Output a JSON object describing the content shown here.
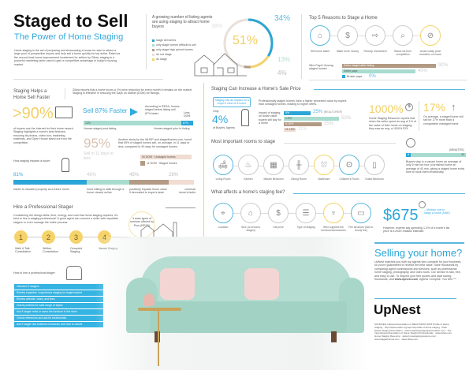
{
  "header": {
    "title": "Staged to Sell",
    "subtitle": "The Power of Home Staging",
    "intro": "Home staging is the act of preparing and showcasing a house for sale to attract a large pool of prospective buyers and help sell a home quickly for top dollar. Rated as the second best home improvement investment for sellers by Zillow, staging is a powerful marketing tactic used to gain a competitive advantage in today's housing market."
  },
  "agents": {
    "text": "A growing number of listing agents are using staging to attract home buyers",
    "legend": [
      "stage all homes",
      "only stage homes difficult to sell",
      "only stage high priced homes",
      "do not stage",
      "do stage"
    ],
    "center": "51%",
    "labels": {
      "p34": "34%",
      "p38": "38%",
      "p13": "13%",
      "p4": "4%"
    },
    "colors": [
      "#2aa6d8",
      "#a8dccf",
      "#b39a84",
      "#e8e0da",
      "#f5d36a"
    ]
  },
  "reasons": {
    "title": "Top 5 Reasons to Stage a Home",
    "items": [
      "Sell home faster",
      "Make more money",
      "Recoup investment",
      "Stand out from competition",
      "Avoid costly price reduction on home"
    ],
    "who_pays_label": "Who Pays? Among staged homes",
    "bars": [
      {
        "label": "Seller staged after listing",
        "value": "92%",
        "pct": 92
      },
      {
        "label": "Seller pays",
        "value": "40%",
        "pct": 40
      },
      {
        "label": "Broker pays",
        "value": "0%",
        "pct": 0
      }
    ]
  },
  "faster": {
    "title": "Staging Helps a Home Sell Faster",
    "zillow": "Zillow reports that a home incurs a 1% price reduction for every month it remains on the market. Staging is effective in reducing the Days on Market (DOM) for listings.",
    "big90": ">90%",
    "big90_text": "of buyers use the Internet for their home search. Staging highlights a home's best features, ensuring its photos, video tour, marketing materials, and Open House stand out from the competition.",
    "sell87": "Sell 87% Faster",
    "resa": "According to RESA, homes staged before listing sell 87% faster",
    "dom_label": "Less DOM",
    "bar_left": "13%",
    "bar_right": "87%",
    "bar_left_label": "Homes staged post-listing",
    "bar_right_label": "Homes staged prior to listing",
    "big95": "95%",
    "big95_sub": "Sell in 11 days or less",
    "study": "Another study by the IAHSP and stagedhomes.com, found that 95% of staged homes sell, on average, in 11 days or less, compared to 90 days for unstaged homes.",
    "dom": [
      {
        "value": "90 DOM",
        "label": "Unstaged homes"
      },
      {
        "value": "11 DOM",
        "label": "Staged homes"
      }
    ],
    "impact_label": "How staging impacts a buyer:",
    "impact": [
      {
        "value": "81%",
        "text": "easier to visualize property as a future home",
        "pct": 81
      },
      {
        "value": "46%",
        "text": "more willing to walk through a home viewed online",
        "pct": 46
      },
      {
        "value": "45%",
        "text": "positively impacts home value if decorated to buyer's taste",
        "pct": 45
      },
      {
        "value": "28%",
        "text": "overlook home's faults",
        "pct": 28
      }
    ]
  },
  "hire": {
    "title": "Hire a Professional Stager",
    "text": "Considering the design skills, time, energy, and cost that home staging requires, it's best to hire a staging professional. A good agent can connect a seller with reputable stagers or even manage the entire process.",
    "badge": "4 main types of services offered by Pros (RESA)",
    "steps": [
      {
        "n": "1",
        "label": "Walk & Talk Consultation"
      },
      {
        "n": "2",
        "label": "Written Consultation"
      },
      {
        "n": "3",
        "label": "Occupied Staging"
      },
      {
        "n": "4",
        "label": "Vacant Staging"
      }
    ],
    "how_label": "How to hire a professional stager:",
    "tips": [
      "Interview 3 stagers",
      "Review expertise / experience staging for target market",
      "Review website, video, and fees",
      "Check portfolio for wide range of styles",
      "Ask if stager rents or owns the furniture in the store",
      "Check references and ask for testimonials",
      "Ask if stager has business insurance and how to cancel"
    ]
  },
  "price": {
    "title": "Staging Can Increase a Home's Sale Price",
    "callout": "Staging has an impact on a buyer's view of a home",
    "only": "Only",
    "p4": "4%",
    "p4_label": "of Buyers' Agents",
    "desc": "Professionally staged homes have a higher perceived value by buyers than unstaged homes, leading to higher offers.",
    "impact_label": "Impact of staging on dollar value buyers will pay for a home",
    "bars": [
      {
        "label": "5%",
        "value": "25%",
        "note": "(REALTORS®)",
        "pct": 25,
        "color": "#2aa6d8"
      },
      {
        "label": "1-5%",
        "value": "52%",
        "pct": 52,
        "color": "#a8dccf"
      },
      {
        "label": "6-10%",
        "value": "35%",
        "pct": 35,
        "color": "#b39a84"
      },
      {
        "label": "11-15%",
        "value": "11%",
        "pct": 11,
        "color": "#f0dcd2"
      }
    ],
    "p1000": "1000%",
    "p1000_text": "Home Staging Resource reports that when the seller spent an avg of 1% of the value of their home on staging, they saw an avg. a 1000% ROI",
    "p17": "17%",
    "p17_text": "On average, a staged home will sell for 17% more than a comparable unstaged home"
  },
  "rooms": {
    "title": "Most important rooms to stage",
    "items": [
      "Living Room",
      "Kitchen",
      "Master Bedroom",
      "Dining Room",
      "Bathroom",
      "Children's Room",
      "Guest Bedroom"
    ],
    "minutes_label": "(MINUTES)",
    "min_low": "5",
    "min_high": "40",
    "minutes_text": "Buyers stay in a vacant home an average of only 5 min but tour a furnished home an average of 40 min, giving a staged home extra time to hook them emotionally."
  },
  "fee": {
    "title": "What affects a home's staging fee?",
    "items": [
      "Location",
      "Size (or #rooms staged)",
      "List price",
      "Type of staging",
      "Who supplies the furniture/accessories",
      "Fee structure (flat vs. hourly fee)"
    ],
    "amount": "$675",
    "amount_label": "– Median cost to stage a home (NAR)",
    "note": "However, experts say spending 1-3% of a home's list price is a more realistic estimate."
  },
  "sell": {
    "title": "Selling your home?",
    "text": "UpNest matches you with top agents who compete for your business, so you're guaranteed to receive the best value. Save thousands by comparing agent commissions and services, such as professional home staging, photography, and video tours. Our service is fast, free, and easy to use. To request your free quotes and start saving thousands, visit",
    "link": "www.upnest.com",
    "tag": ". Agents Compete. You Win.™",
    "logo": "UpNest",
    "sources": "SOURCES: National Association of REALTORS® 2015 Profile of Home Staging · http://www.realtor.org/reports/profile-of-home-staging · Real Estate Staging Association · www.realestatestagingassociation.com · The International Association of Home Staging Professionals · www.iahsp.com · Home Staging Resource · www.homestagingresource.com · www.stagedhomes.com · www.zillow.com"
  }
}
